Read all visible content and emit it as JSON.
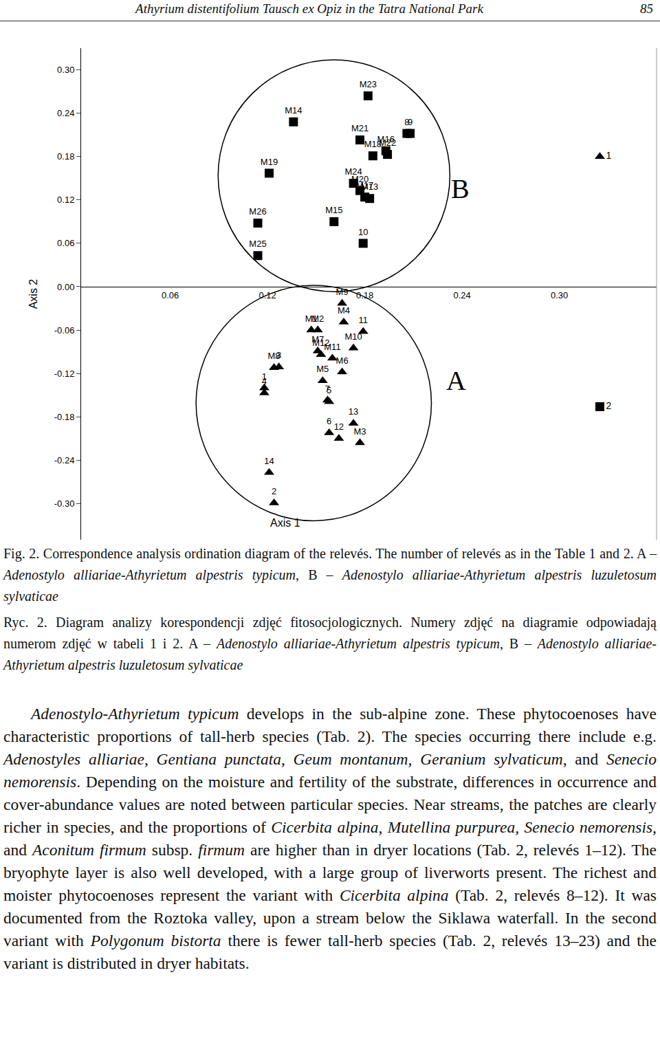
{
  "header": {
    "title": "Athyrium distentifolium Tausch ex Opiz in the Tatra National Park",
    "page": "85"
  },
  "chart_data": {
    "type": "scatter",
    "x_label": "Axis 1",
    "y_label": "Axis 2",
    "xlim": [
      0.005,
      0.36
    ],
    "ylim": [
      -0.35,
      0.33
    ],
    "xticks": [
      0.06,
      0.12,
      0.18,
      0.24,
      {
        "value": 0.3,
        "label": "0.30"
      }
    ],
    "yticks": [
      {
        "value": 0.3,
        "label": "0.30"
      },
      0.24,
      0.18,
      0.12,
      0.06,
      {
        "value": 0,
        "label": "0.00"
      },
      -0.06,
      -0.12,
      -0.18,
      -0.24,
      {
        "value": -0.3,
        "label": "-0.30"
      }
    ],
    "grid": false,
    "series": [
      {
        "name": "B",
        "marker": "square",
        "color": "#000000",
        "points": [
          {
            "label": "M23",
            "x": 0.182,
            "y": 0.264
          },
          {
            "label": "M14",
            "x": 0.136,
            "y": 0.228
          },
          {
            "label": "M21",
            "x": 0.177,
            "y": 0.203
          },
          {
            "label": "8",
            "x": 0.206,
            "y": 0.212
          },
          {
            "label": "9",
            "x": 0.208,
            "y": 0.212
          },
          {
            "label": "M18",
            "x": 0.185,
            "y": 0.181
          },
          {
            "label": "M16",
            "x": 0.193,
            "y": 0.188
          },
          {
            "label": "M22",
            "x": 0.194,
            "y": 0.183
          },
          {
            "label": "M19",
            "x": 0.121,
            "y": 0.157
          },
          {
            "label": "M24",
            "x": 0.173,
            "y": 0.143
          },
          {
            "label": "M20",
            "x": 0.177,
            "y": 0.133
          },
          {
            "label": "M17",
            "x": 0.18,
            "y": 0.124
          },
          {
            "label": "M13",
            "x": 0.183,
            "y": 0.122
          },
          {
            "label": "M26",
            "x": 0.114,
            "y": 0.088
          },
          {
            "label": "M15",
            "x": 0.161,
            "y": 0.09
          },
          {
            "label": "10",
            "x": 0.179,
            "y": 0.06
          },
          {
            "label": "M25",
            "x": 0.114,
            "y": 0.043
          }
        ]
      },
      {
        "name": "A",
        "marker": "triangle-up",
        "color": "#000000",
        "points": [
          {
            "label": "M9",
            "x": 0.166,
            "y": -0.023
          },
          {
            "label": "M4",
            "x": 0.167,
            "y": -0.049
          },
          {
            "label": "M1",
            "x": 0.147,
            "y": -0.06
          },
          {
            "label": "M2",
            "x": 0.151,
            "y": -0.06
          },
          {
            "label": "11",
            "x": 0.179,
            "y": -0.062
          },
          {
            "label": "M10",
            "x": 0.173,
            "y": -0.085
          },
          {
            "label": "M7",
            "x": 0.151,
            "y": -0.089
          },
          {
            "label": "M12",
            "x": 0.153,
            "y": -0.094
          },
          {
            "label": "M11",
            "x": 0.16,
            "y": -0.099
          },
          {
            "label": "M6",
            "x": 0.166,
            "y": -0.118
          },
          {
            "label": "M5",
            "x": 0.154,
            "y": -0.13
          },
          {
            "label": "M8",
            "x": 0.124,
            "y": -0.112
          },
          {
            "label": "3",
            "x": 0.127,
            "y": -0.111
          },
          {
            "label": "1",
            "x": 0.118,
            "y": -0.14
          },
          {
            "label": "4",
            "x": 0.118,
            "y": -0.147
          },
          {
            "label": "7",
            "x": 0.157,
            "y": -0.157
          },
          {
            "label": "5",
            "x": 0.158,
            "y": -0.159
          },
          {
            "label": "13",
            "x": 0.173,
            "y": -0.189
          },
          {
            "label": "6",
            "x": 0.158,
            "y": -0.202
          },
          {
            "label": "12",
            "x": 0.164,
            "y": -0.21
          },
          {
            "label": "M3",
            "x": 0.177,
            "y": -0.216
          },
          {
            "label": "14",
            "x": 0.121,
            "y": -0.257
          },
          {
            "label": "2",
            "x": 0.124,
            "y": -0.299
          }
        ]
      }
    ],
    "extra_points": [
      {
        "label": "1",
        "marker": "triangle-up",
        "color": "#000000",
        "x": 0.325,
        "y": 0.18
      },
      {
        "label": "2",
        "marker": "square",
        "color": "#000000",
        "x": 0.325,
        "y": -0.166
      }
    ]
  },
  "caption_en": [
    {
      "text": "Fig. 2. Correspondence analysis ordination diagram of the relevés. The number of relevés as in the Table 1 and 2. A – ",
      "italic": false
    },
    {
      "text": "Adenostylo alliariae-Athyrietum alpestris typicum",
      "italic": true
    },
    {
      "text": ", B – ",
      "italic": false
    },
    {
      "text": "Adenostylo alliariae-Athyrietum alpestris luzuletosum sylvaticae",
      "italic": true
    }
  ],
  "caption_pl": [
    {
      "text": "Ryc. 2. Diagram analizy korespondencji zdjęć fitosocjologicznych. Numery zdjęć na diagramie odpowiadają numerom zdjęć w tabeli 1 i 2. A – ",
      "italic": false
    },
    {
      "text": "Adenostylo alliariae-Athyrietum alpestris typicum",
      "italic": true
    },
    {
      "text": ", B – ",
      "italic": false
    },
    {
      "text": "Adenostylo alliariae-Athyrietum alpestris luzuletosum sylvaticae",
      "italic": true
    }
  ],
  "body": [
    {
      "text": "Adenostylo-Athyrietum typicum",
      "italic": true
    },
    {
      "text": " develops in the sub-alpine zone. These phytocoenoses have characteristic proportions of tall-herb species (Tab. 2). The species occurring there include e.g. ",
      "italic": false
    },
    {
      "text": "Adenostyles alliariae, Gentiana punctata, Geum montanum, Geranium sylvaticum,",
      "italic": true
    },
    {
      "text": " and ",
      "italic": false
    },
    {
      "text": "Senecio nemorensis",
      "italic": true
    },
    {
      "text": ". Depending on the moisture and fertility of the substrate, differences in occurrence and cover-abundance values are noted between particular species. Near streams, the patches are clearly richer in species, and the proportions of ",
      "italic": false
    },
    {
      "text": "Cicerbita alpina, Mutellina purpurea, Senecio nemorensis,",
      "italic": true
    },
    {
      "text": " and ",
      "italic": false
    },
    {
      "text": "Aconitum firmum",
      "italic": true
    },
    {
      "text": " subsp. ",
      "italic": false
    },
    {
      "text": "firmum",
      "italic": true
    },
    {
      "text": " are higher than in dryer locations (Tab. 2, relevés 1–12). The bryophyte layer is also well developed, with a large group of liverworts present. The richest and moister phytocoenoses represent the variant with ",
      "italic": false
    },
    {
      "text": "Cicerbita alpina",
      "italic": true
    },
    {
      "text": " (Tab. 2, relevés 8–12). It was documented from the Roztoka valley, upon a stream below the Siklawa waterfall. In the second variant with ",
      "italic": false
    },
    {
      "text": "Polygonum bistorta",
      "italic": true
    },
    {
      "text": " there is fewer tall-herb species (Tab. 2, relevés 13–23) and the variant is distributed in dryer habitats.",
      "italic": false
    }
  ]
}
